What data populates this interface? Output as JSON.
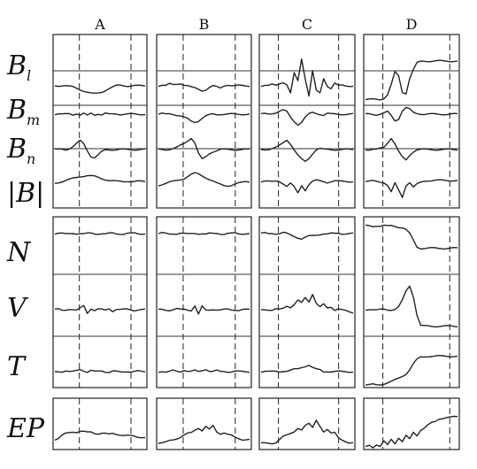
{
  "chart_data": {
    "type": "line",
    "title": "",
    "columns": [
      "A",
      "B",
      "C",
      "D"
    ],
    "rows": [
      {
        "key": "Bl",
        "label": "B",
        "sub": "l"
      },
      {
        "key": "Bm",
        "label": "B",
        "sub": "m"
      },
      {
        "key": "Bn",
        "label": "B",
        "sub": "n"
      },
      {
        "key": "Bmag",
        "label": "|B|",
        "sub": ""
      },
      {
        "key": "N",
        "label": "N",
        "sub": ""
      },
      {
        "key": "V",
        "label": "V",
        "sub": ""
      },
      {
        "key": "T",
        "label": "T",
        "sub": ""
      },
      {
        "key": "EP",
        "label": "EP",
        "sub": ""
      }
    ],
    "x": [
      0,
      0.04,
      0.08,
      0.12,
      0.16,
      0.2,
      0.24,
      0.28,
      0.32,
      0.36,
      0.4,
      0.44,
      0.48,
      0.52,
      0.56,
      0.6,
      0.64,
      0.68,
      0.72,
      0.76,
      0.8,
      0.84,
      0.88,
      0.92,
      0.96,
      1
    ],
    "dashed_markers": {
      "A": [
        0.28,
        0.83
      ],
      "B": [
        0.28,
        0.83
      ],
      "C": [
        0.2,
        0.83
      ],
      "D": [
        0.2,
        0.9
      ]
    },
    "grid": false,
    "legend": "none",
    "series": {
      "A": {
        "Bl": [
          0,
          0,
          0.02,
          0.01,
          -0.02,
          -0.05,
          -0.1,
          -0.15,
          -0.2,
          -0.25,
          -0.3,
          -0.32,
          -0.3,
          -0.25,
          -0.18,
          -0.1,
          -0.05,
          0,
          0.02,
          0.01,
          0,
          0,
          0.01,
          0,
          0,
          0
        ],
        "Bm": [
          0,
          0.02,
          -0.02,
          0,
          0.03,
          -0.03,
          0.05,
          -0.06,
          0.04,
          -0.1,
          0.06,
          -0.05,
          0.03,
          -0.04,
          0.05,
          -0.02,
          0,
          0.02,
          -0.01,
          0,
          0,
          0,
          0,
          0,
          0,
          0
        ],
        "Bn": [
          0,
          0,
          0.02,
          0,
          0.05,
          0.15,
          0.3,
          0.45,
          0.3,
          -0.05,
          -0.35,
          -0.42,
          -0.28,
          -0.12,
          -0.02,
          0,
          0,
          0,
          0,
          0,
          0,
          0,
          0,
          0,
          0,
          0
        ],
        "Bmag": [
          -0.1,
          -0.05,
          0,
          0.05,
          0.1,
          0.15,
          0.2,
          0.25,
          0.28,
          0.3,
          0.28,
          0.25,
          0.2,
          0.15,
          0.1,
          0.05,
          0.02,
          0,
          0,
          0,
          0.02,
          0,
          -0.02,
          0,
          0,
          0
        ],
        "N": [
          0,
          0.02,
          0,
          -0.02,
          0,
          0.02,
          0,
          0,
          -0.02,
          0,
          0.02,
          0,
          0,
          0,
          -0.02,
          0,
          0.02,
          0,
          0,
          -0.02,
          0,
          0,
          0.02,
          0,
          0,
          0
        ],
        "V": [
          0,
          0.02,
          -0.02,
          0,
          0.03,
          0,
          -0.03,
          0.05,
          0.15,
          -0.12,
          0.05,
          -0.03,
          0.02,
          0,
          -0.02,
          0.05,
          -0.05,
          0.02,
          0,
          0,
          0.02,
          0,
          -0.02,
          0,
          0,
          0
        ],
        "T": [
          0,
          0.02,
          0,
          0.03,
          -0.02,
          0,
          0.05,
          0.12,
          0.05,
          -0.03,
          0.04,
          0,
          0.02,
          0.05,
          0,
          -0.03,
          0.02,
          0,
          -0.02,
          0,
          0.02,
          0,
          0,
          0.02,
          0,
          0
        ],
        "EP": [
          -0.3,
          -0.25,
          -0.1,
          0,
          0.05,
          0.1,
          0.08,
          0.12,
          0.1,
          0.05,
          0.08,
          0.02,
          0,
          0.03,
          0,
          -0.05,
          0,
          -0.03,
          -0.05,
          -0.08,
          -0.1,
          -0.12,
          -0.15,
          -0.18,
          -0.18,
          -0.18
        ]
      },
      "B": {
        "Bl": [
          0,
          0.05,
          0.02,
          0.08,
          0.03,
          0.05,
          0.1,
          0.05,
          0.02,
          -0.05,
          -0.1,
          -0.15,
          -0.2,
          -0.15,
          -0.05,
          0,
          -0.05,
          -0.1,
          0,
          0.05,
          0.02,
          0,
          0.01,
          0,
          0,
          0
        ],
        "Bm": [
          0,
          0.03,
          -0.02,
          0.02,
          0,
          -0.05,
          -0.1,
          -0.2,
          -0.3,
          -0.45,
          -0.5,
          -0.42,
          -0.25,
          -0.12,
          -0.05,
          0,
          -0.02,
          0,
          0,
          0,
          0,
          0,
          0,
          0,
          0,
          0
        ],
        "Bn": [
          0,
          0,
          0,
          0.02,
          0.05,
          0.1,
          0.2,
          0.3,
          0.45,
          0.6,
          0.35,
          -0.2,
          -0.5,
          -0.38,
          -0.2,
          -0.1,
          -0.05,
          0,
          0,
          0,
          0,
          0,
          0,
          0,
          0,
          0
        ],
        "Bmag": [
          -0.2,
          -0.15,
          -0.1,
          -0.05,
          0,
          0.05,
          0.1,
          0.15,
          0.25,
          0.35,
          0.42,
          0.38,
          0.3,
          0.2,
          0.1,
          0,
          -0.1,
          -0.15,
          -0.2,
          -0.22,
          -0.2,
          -0.15,
          -0.1,
          -0.05,
          0,
          0
        ],
        "N": [
          0,
          0.02,
          0,
          -0.02,
          0,
          0,
          0.02,
          0,
          -0.02,
          0,
          0.02,
          0,
          0,
          -0.03,
          0,
          0,
          0.02,
          0,
          -0.02,
          0,
          0,
          0.02,
          0,
          0,
          0,
          0
        ],
        "V": [
          0,
          0.02,
          0,
          -0.02,
          0,
          0.03,
          0,
          0.02,
          0,
          -0.02,
          0.15,
          -0.18,
          0.12,
          -0.02,
          0,
          0.02,
          0,
          -0.02,
          0,
          0.02,
          0,
          0,
          -0.02,
          0,
          0,
          0
        ],
        "T": [
          0,
          0.02,
          -0.02,
          0,
          0.05,
          0.02,
          0,
          0.08,
          0.02,
          0,
          0.05,
          0,
          0.06,
          0.12,
          0.02,
          0,
          0.05,
          0,
          0.02,
          0,
          0,
          0.02,
          0,
          0,
          0,
          0
        ],
        "EP": [
          -0.5,
          -0.5,
          -0.45,
          -0.35,
          -0.3,
          -0.25,
          -0.2,
          -0.1,
          0,
          0.05,
          0.2,
          0.3,
          0.15,
          0.35,
          0.2,
          0.4,
          0.1,
          0,
          0.05,
          -0.05,
          -0.1,
          -0.2,
          -0.25,
          -0.3,
          -0.3,
          -0.3
        ]
      },
      "C": {
        "Bl": [
          0,
          0.02,
          0,
          0.05,
          0.02,
          0.1,
          0.15,
          0.05,
          -0.3,
          0.5,
          0.2,
          1.1,
          0.3,
          -0.4,
          0.6,
          -0.2,
          -0.3,
          0.3,
          0,
          -0.1,
          0.1,
          0,
          0.02,
          0,
          0,
          0
        ],
        "Bm": [
          0,
          0.02,
          0,
          0.05,
          0.1,
          0.2,
          0.25,
          0.15,
          -0.2,
          -0.45,
          -0.65,
          -0.5,
          -0.2,
          0,
          0.1,
          0.05,
          0,
          -0.05,
          0.05,
          0,
          0,
          0,
          0,
          0,
          0,
          0
        ],
        "Bn": [
          0,
          0,
          0.02,
          0.05,
          0.1,
          0.2,
          0.35,
          0.5,
          0.3,
          0,
          -0.3,
          -0.5,
          -0.62,
          -0.45,
          -0.2,
          0,
          0.05,
          0,
          0,
          0,
          0,
          0,
          0,
          0,
          0,
          0
        ],
        "Bmag": [
          0,
          0.02,
          0,
          -0.03,
          0.02,
          0,
          -0.1,
          -0.25,
          -0.1,
          -0.3,
          -0.6,
          -0.2,
          -0.45,
          -0.15,
          0,
          0.05,
          0.02,
          0,
          -0.05,
          0,
          0.02,
          0,
          0,
          0,
          0,
          0
        ],
        "N": [
          0,
          0.02,
          0,
          0.02,
          0,
          0,
          0.03,
          0,
          -0.05,
          -0.1,
          -0.15,
          -0.2,
          -0.15,
          -0.1,
          -0.08,
          -0.05,
          -0.02,
          0,
          -0.02,
          0,
          0,
          0.02,
          0,
          0,
          0,
          0
        ],
        "V": [
          0,
          0.02,
          0,
          -0.02,
          0.02,
          0,
          0.05,
          0.15,
          0.1,
          0.2,
          0.35,
          0.25,
          0.45,
          0.3,
          0.6,
          0.25,
          0.1,
          0.2,
          0.05,
          0.1,
          0,
          0.05,
          0,
          -0.05,
          -0.1,
          -0.12
        ],
        "T": [
          0,
          0.02,
          0,
          0,
          0.02,
          0,
          0.03,
          0.02,
          0.05,
          0.1,
          0.12,
          0.2,
          0.25,
          0.3,
          0.18,
          0.1,
          0.08,
          0,
          0.02,
          0,
          0,
          0,
          0,
          0,
          0,
          0
        ],
        "EP": [
          -0.5,
          -0.5,
          -0.5,
          -0.5,
          -0.45,
          -0.3,
          -0.15,
          -0.1,
          0,
          0.1,
          0.3,
          0.2,
          0.4,
          0.5,
          0.3,
          0.7,
          0.4,
          0.1,
          0.2,
          0,
          0.05,
          -0.2,
          -0.3,
          -0.4,
          -0.5,
          -0.5
        ],
        "Bl_scale": 0.9
      },
      "D": {
        "Bl": [
          -0.55,
          -0.55,
          -0.55,
          -0.55,
          -0.55,
          -0.5,
          -0.35,
          0.05,
          0.55,
          0.4,
          -0.25,
          -0.3,
          0.3,
          0.65,
          0.92,
          0.98,
          1,
          1,
          1,
          1,
          1,
          1,
          1,
          1,
          1,
          1
        ],
        "Bm": [
          0,
          0.02,
          0,
          -0.03,
          0,
          0.05,
          0.15,
          -0.1,
          -0.4,
          -0.3,
          0.2,
          0.4,
          0.3,
          0.1,
          0.05,
          0.02,
          0,
          0,
          0,
          0,
          0,
          0,
          0,
          0,
          0,
          0
        ],
        "Bn": [
          0,
          0,
          0.02,
          0,
          0.05,
          0.1,
          0.35,
          0.6,
          0.3,
          -0.1,
          -0.4,
          -0.55,
          -0.3,
          -0.1,
          0,
          0,
          0,
          0,
          0,
          0,
          0,
          0,
          0,
          0,
          0,
          0
        ],
        "Bmag": [
          0,
          0,
          0.02,
          0,
          -0.02,
          -0.05,
          -0.2,
          -0.55,
          -0.1,
          -0.45,
          -0.8,
          -0.2,
          -0.05,
          -0.3,
          -0.15,
          -0.05,
          0.02,
          0.05,
          0.05,
          0.05,
          0.05,
          0.05,
          0.05,
          0.05,
          0.05,
          0.05
        ],
        "N": [
          0.3,
          0.3,
          0.28,
          0.3,
          0.28,
          0.3,
          0.28,
          0.3,
          0.28,
          0.25,
          0.22,
          0.15,
          0,
          -0.25,
          -0.5,
          -0.55,
          -0.55,
          -0.55,
          -0.55,
          -0.55,
          -0.55,
          -0.55,
          -0.55,
          -0.55,
          -0.55,
          -0.55
        ],
        "V": [
          0,
          0.02,
          0,
          -0.02,
          0,
          0.02,
          0,
          0,
          0.02,
          0.1,
          0.35,
          0.7,
          0.9,
          0.5,
          -0.2,
          -0.6,
          -0.62,
          -0.62,
          -0.62,
          -0.62,
          -0.62,
          -0.62,
          -0.62,
          -0.62,
          -0.62,
          -0.62
        ],
        "T": [
          -0.6,
          -0.6,
          -0.58,
          -0.6,
          -0.58,
          -0.55,
          -0.5,
          -0.45,
          -0.38,
          -0.3,
          -0.2,
          -0.1,
          0.1,
          0.35,
          0.55,
          0.65,
          0.68,
          0.7,
          0.7,
          0.7,
          0.7,
          0.7,
          0.7,
          0.7,
          0.7,
          0.7
        ],
        "EP": [
          -0.7,
          -0.6,
          -0.7,
          -0.55,
          -0.65,
          -0.4,
          -0.6,
          -0.3,
          -0.5,
          -0.2,
          -0.4,
          -0.1,
          -0.3,
          0.05,
          -0.1,
          0.2,
          0.3,
          0.45,
          0.55,
          0.6,
          0.75,
          0.8,
          0.85,
          0.85,
          0.85,
          0.85
        ]
      }
    }
  }
}
